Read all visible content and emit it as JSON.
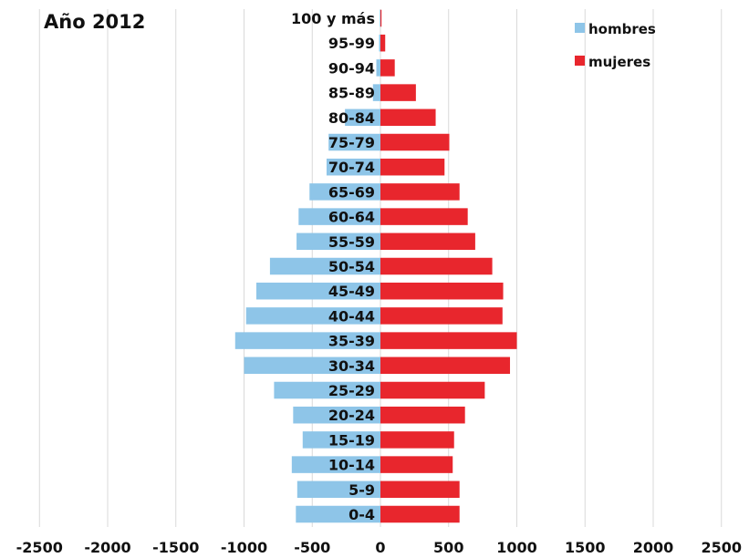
{
  "chart_data": {
    "type": "bar",
    "orientation": "horizontal",
    "title": "Año 2012",
    "categories": [
      "100 y más",
      "95-99",
      "90-94",
      "85-89",
      "80-84",
      "75-79",
      "70-74",
      "65-69",
      "60-64",
      "55-59",
      "50-54",
      "45-49",
      "40-44",
      "35-39",
      "30-34",
      "25-29",
      "20-24",
      "15-19",
      "10-14",
      "5-9",
      "0-4"
    ],
    "series": [
      {
        "name": "hombres",
        "color": "#8ec5e8",
        "values": [
          -5,
          -10,
          -30,
          -55,
          -260,
          -380,
          -395,
          -520,
          -600,
          -615,
          -810,
          -910,
          -985,
          -1065,
          -1000,
          -780,
          -640,
          -570,
          -650,
          -610,
          -620
        ]
      },
      {
        "name": "mujeres",
        "color": "#e8262d",
        "values": [
          8,
          35,
          105,
          260,
          405,
          505,
          470,
          580,
          640,
          695,
          820,
          900,
          895,
          1000,
          950,
          765,
          620,
          540,
          530,
          580,
          580
        ]
      }
    ],
    "x_ticks": [
      "-2500",
      "-2000",
      "-1500",
      "-1000",
      "-500",
      "0",
      "500",
      "1000",
      "1500",
      "2000",
      "2500"
    ],
    "xlim": [
      -2500,
      2500
    ],
    "grid": true,
    "legend_position": "top-right"
  }
}
